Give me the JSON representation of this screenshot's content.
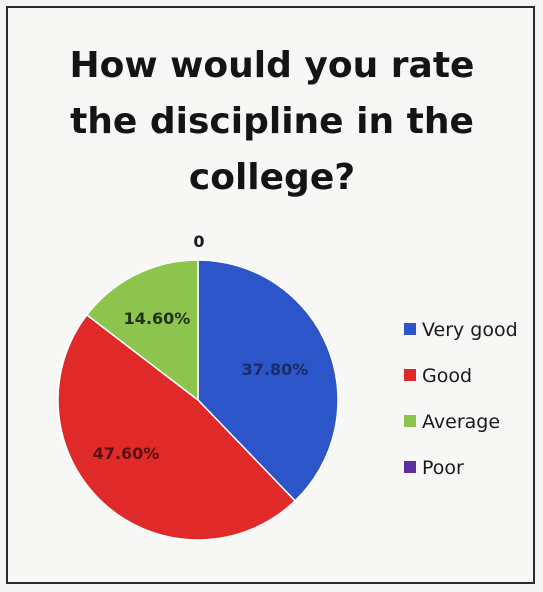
{
  "chart_data": {
    "type": "pie",
    "title_lines": [
      "How would you rate",
      "the discipline in the",
      "college?"
    ],
    "categories": [
      "Very good",
      "Good",
      "Average",
      "Poor"
    ],
    "values": [
      37.8,
      47.6,
      14.6,
      0
    ],
    "data_labels": [
      "37.80%",
      "47.60%",
      "14.60%",
      "0"
    ],
    "colors": [
      "#2b55c8",
      "#e02a2a",
      "#8cc44e",
      "#5a2fa0"
    ],
    "label_colors": [
      "#1a2d66",
      "#5a1010",
      "#1e3310",
      "#1a1a1a"
    ],
    "legend_position": "right"
  }
}
